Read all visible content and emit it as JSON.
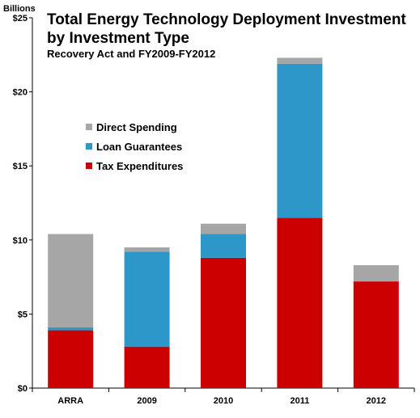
{
  "chart_data": {
    "type": "bar",
    "stacked": true,
    "title_line1": "Total Energy Technology Deployment Investment",
    "title_line2": "by Investment Type",
    "subtitle": "Recovery Act and FY2009-FY2012",
    "unit_label": "Billions",
    "categories": [
      "ARRA",
      "2009",
      "2010",
      "2011",
      "2012"
    ],
    "series": [
      {
        "name": "Tax Expenditures",
        "color": "#cc0000",
        "values": [
          3.9,
          2.8,
          8.8,
          11.5,
          7.2
        ]
      },
      {
        "name": "Loan Guarantees",
        "color": "#2e97c9",
        "values": [
          0.2,
          6.4,
          1.6,
          10.4,
          0.0
        ]
      },
      {
        "name": "Direct Spending",
        "color": "#a6a6a6",
        "values": [
          6.3,
          0.3,
          0.7,
          0.4,
          1.1
        ]
      }
    ],
    "legend_order": [
      "Direct Spending",
      "Loan Guarantees",
      "Tax Expenditures"
    ],
    "y_ticks": [
      0,
      5,
      10,
      15,
      20,
      25
    ],
    "y_tick_labels": [
      "$0",
      "$5",
      "$10",
      "$15",
      "$20",
      "$25"
    ],
    "ylim": [
      0,
      25
    ],
    "grid": false,
    "legend_position": "upper-left"
  }
}
